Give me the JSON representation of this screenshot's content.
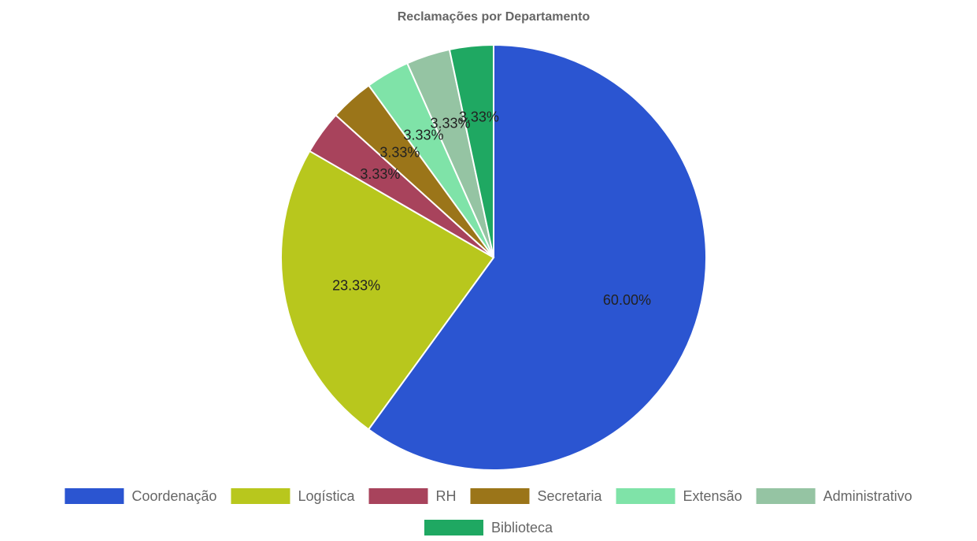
{
  "chart_data": {
    "type": "pie",
    "title": "Reclamações por Departamento",
    "categories": [
      "Coordenação",
      "Logística",
      "RH",
      "Secretaria",
      "Extensão",
      "Administrativo",
      "Biblioteca"
    ],
    "values": [
      60,
      23.33,
      3.33,
      3.33,
      3.33,
      3.33,
      3.33
    ],
    "value_labels": [
      "60.00%",
      "23.33%",
      "3.33%",
      "3.33%",
      "3.33%",
      "3.33%",
      "3.33%"
    ],
    "colors": [
      "#2b55d1",
      "#b8c71d",
      "#a8435c",
      "#9b7519",
      "#7fe3a8",
      "#95c4a3",
      "#1fa862"
    ],
    "legend": "bottom"
  }
}
